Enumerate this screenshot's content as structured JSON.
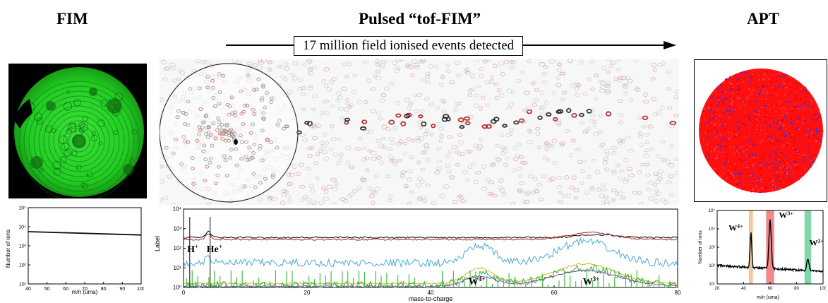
{
  "titles": {
    "fim": "FIM",
    "tof": "Pulsed “tof-FIM”",
    "apt": "APT"
  },
  "banner": "17 million field ionised events detected",
  "colors": {
    "fim_green": "#22cc22",
    "apt_red": "#ff1010",
    "apt_blue": "#3030ff"
  },
  "chart_data": [
    {
      "id": "fim-spectrum",
      "type": "line",
      "xlabel": "m/n (uma)",
      "ylabel": "Number of ions",
      "xlim": [
        40,
        100
      ],
      "xticks": [
        "40",
        "50",
        "60",
        "70",
        "80",
        "90",
        "100"
      ],
      "ylog": true,
      "ylim_exp": [
        1,
        5
      ],
      "yticks": [
        "10¹",
        "10²",
        "10³",
        "10⁴",
        "10⁵"
      ],
      "series": [
        {
          "x": [
            40,
            100
          ],
          "y": [
            5500,
            3700
          ]
        }
      ]
    },
    {
      "id": "tof-spectrum",
      "type": "line",
      "xlabel": "mass-to-charge",
      "ylabel": "Label",
      "xlim": [
        0,
        80
      ],
      "xticks": [
        "0",
        "20",
        "40",
        "60",
        "80"
      ],
      "ylog": true,
      "ylim_exp": [
        0,
        4
      ],
      "yticks": [
        "10⁰",
        "10¹",
        "10²",
        "10³",
        "10⁴"
      ],
      "annotations": [
        {
          "text": "H",
          "sup": "+",
          "x": 1.5,
          "y_exp": 1.8
        },
        {
          "text": "He",
          "sup": "+",
          "x": 5.0,
          "y_exp": 1.8
        },
        {
          "text": "W",
          "sup": "4+",
          "x": 47.5,
          "y_exp": 0.15
        },
        {
          "text": "W",
          "sup": "3+",
          "x": 66.0,
          "y_exp": 0.15
        }
      ]
    },
    {
      "id": "apt-spectrum",
      "type": "line",
      "xlabel": "m/n (uma)",
      "ylabel": "Number of ions",
      "xlim": [
        20,
        100
      ],
      "xticks": [
        "20",
        "40",
        "60",
        "80",
        "100"
      ],
      "ylog": true,
      "ylim_exp": [
        1,
        5
      ],
      "yticks": [
        "10¹",
        "10²",
        "10³",
        "10⁴",
        "10⁵"
      ],
      "highlights": [
        {
          "from": 44,
          "to": 47,
          "color": "#f2b27a"
        },
        {
          "from": 57,
          "to": 63,
          "color": "#ee6060"
        },
        {
          "from": 86,
          "to": 91,
          "color": "#55c98a"
        }
      ],
      "annotations": [
        {
          "text": "W",
          "sup": "4+",
          "x": 34,
          "y_exp": 3.9
        },
        {
          "text": "W",
          "sup": "3+",
          "x": 72,
          "y_exp": 4.6
        },
        {
          "text": "W",
          "sup": "2+",
          "x": 95,
          "y_exp": 3.1
        }
      ]
    }
  ]
}
